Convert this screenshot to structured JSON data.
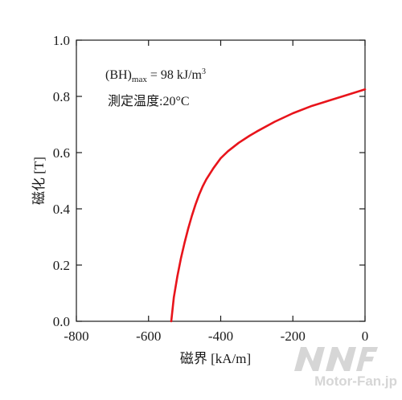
{
  "chart_data": {
    "type": "line",
    "xlabel": "磁界 [kA/m]",
    "ylabel": "磁化 [T]",
    "xlim": [
      -800,
      0
    ],
    "ylim": [
      0.0,
      1.0
    ],
    "x_ticks": [
      -800,
      -600,
      -400,
      -200,
      0
    ],
    "x_tick_labels": [
      "-800",
      "-600",
      "-400",
      "-200",
      "0"
    ],
    "y_ticks": [
      0.0,
      0.2,
      0.4,
      0.6,
      0.8,
      1.0
    ],
    "y_tick_labels": [
      "0.0",
      "0.2",
      "0.4",
      "0.6",
      "0.8",
      "1.0"
    ],
    "grid": false,
    "annotations": {
      "bh_prefix": "(BH)",
      "bh_sub": "max",
      "bh_value": " = 98 kJ/m",
      "bh_sup": "3",
      "temperature": "測定温度:20°C"
    },
    "series": [
      {
        "color": "#e8141b",
        "x": [
          -537,
          -530,
          -520,
          -510,
          -500,
          -490,
          -480,
          -470,
          -460,
          -450,
          -440,
          -420,
          -400,
          -380,
          -350,
          -320,
          -300,
          -250,
          -200,
          -150,
          -100,
          -50,
          0
        ],
        "y": [
          0.0,
          0.085,
          0.16,
          0.225,
          0.28,
          0.33,
          0.375,
          0.415,
          0.45,
          0.48,
          0.505,
          0.545,
          0.58,
          0.605,
          0.635,
          0.66,
          0.675,
          0.71,
          0.74,
          0.765,
          0.785,
          0.805,
          0.825
        ]
      }
    ]
  },
  "watermark": {
    "text": "Motor-Fan.jp"
  }
}
